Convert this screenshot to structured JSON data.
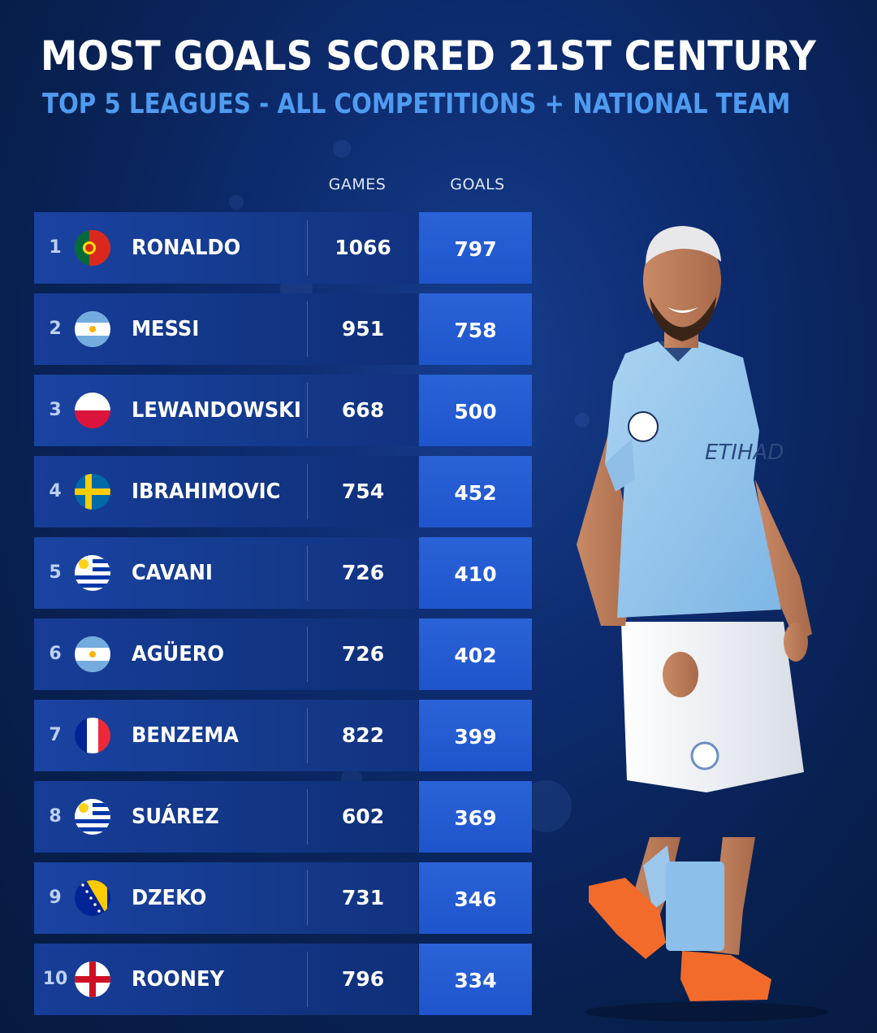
{
  "title": "MOST GOALS SCORED 21ST CENTURY",
  "subtitle": "TOP 5 LEAGUES - ALL COMPETITIONS + NATIONAL TEAM",
  "colors": {
    "background": "#0d2b6e",
    "row": "#153b8e",
    "goals_cell": "#2259d0",
    "subtitle": "#4f9bf0",
    "text": "#ffffff"
  },
  "chart_data": {
    "type": "table",
    "columns": [
      "GAMES",
      "GOALS"
    ],
    "rows": [
      {
        "rank": "1",
        "flag": "portugal-flag-icon",
        "name": "RONALDO",
        "games": "1066",
        "goals": "797"
      },
      {
        "rank": "2",
        "flag": "argentina-flag-icon",
        "name": "MESSI",
        "games": "951",
        "goals": "758"
      },
      {
        "rank": "3",
        "flag": "poland-flag-icon",
        "name": "LEWANDOWSKI",
        "games": "668",
        "goals": "500"
      },
      {
        "rank": "4",
        "flag": "sweden-flag-icon",
        "name": "IBRAHIMOVIC",
        "games": "754",
        "goals": "452"
      },
      {
        "rank": "5",
        "flag": "uruguay-flag-icon",
        "name": "CAVANI",
        "games": "726",
        "goals": "410"
      },
      {
        "rank": "6",
        "flag": "argentina-flag-icon",
        "name": "AGÜERO",
        "games": "726",
        "goals": "402"
      },
      {
        "rank": "7",
        "flag": "france-flag-icon",
        "name": "BENZEMA",
        "games": "822",
        "goals": "399"
      },
      {
        "rank": "8",
        "flag": "uruguay-flag-icon",
        "name": "SUÁREZ",
        "games": "602",
        "goals": "369"
      },
      {
        "rank": "9",
        "flag": "bosnia-flag-icon",
        "name": "DZEKO",
        "games": "731",
        "goals": "346"
      },
      {
        "rank": "10",
        "flag": "england-flag-icon",
        "name": "ROONEY",
        "games": "796",
        "goals": "334"
      }
    ]
  },
  "photo": {
    "icon": "player-photo"
  }
}
